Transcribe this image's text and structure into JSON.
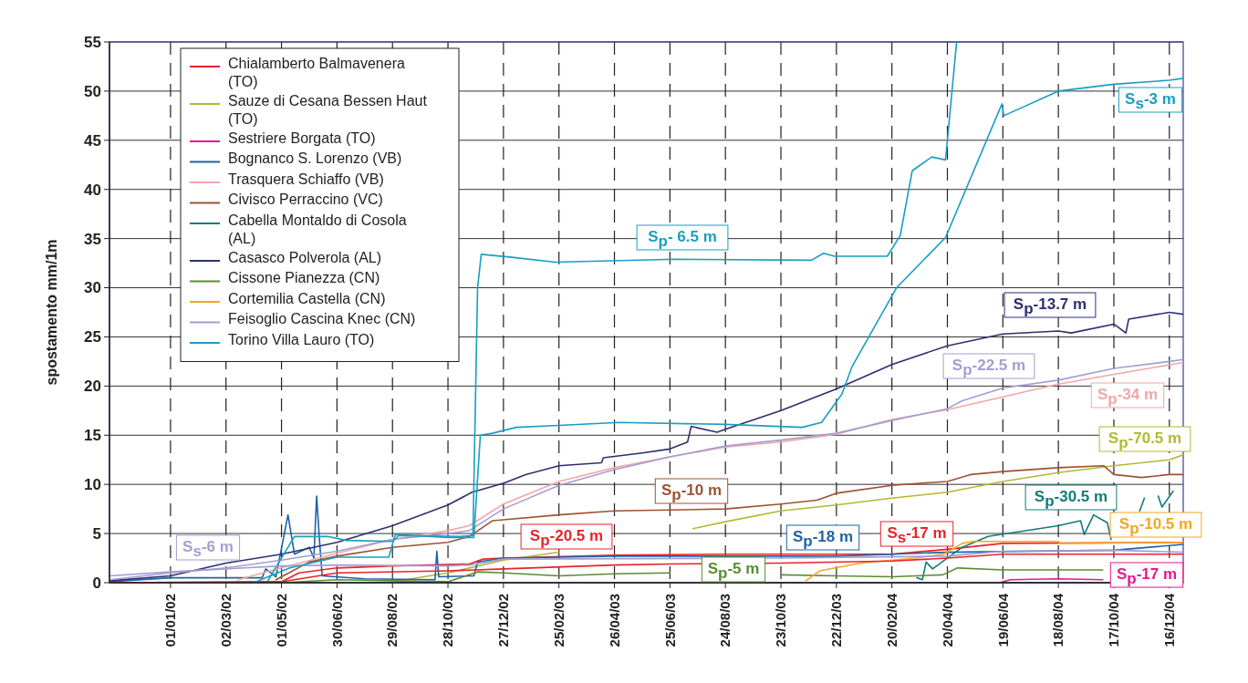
{
  "chart_data": {
    "type": "line",
    "ylabel": "spostamento mm/1m",
    "xlim": [
      "2001-10-27",
      "2004-12-31"
    ],
    "ylim": [
      0,
      55
    ],
    "yticks": [
      0,
      5,
      10,
      15,
      20,
      25,
      30,
      35,
      40,
      45,
      50,
      55
    ],
    "xticks": [
      {
        "value": "2002-01-01",
        "label": "01/01/02"
      },
      {
        "value": "2002-03-02",
        "label": "02/03/02"
      },
      {
        "value": "2002-05-01",
        "label": "01/05/02"
      },
      {
        "value": "2002-06-30",
        "label": "30/06/02"
      },
      {
        "value": "2002-08-29",
        "label": "29/08/02"
      },
      {
        "value": "2002-10-28",
        "label": "28/10/02"
      },
      {
        "value": "2002-12-27",
        "label": "27/12/02"
      },
      {
        "value": "2003-02-25",
        "label": "25/02/03"
      },
      {
        "value": "2003-04-26",
        "label": "26/04/03"
      },
      {
        "value": "2003-06-25",
        "label": "25/06/03"
      },
      {
        "value": "2003-08-24",
        "label": "24/08/03"
      },
      {
        "value": "2003-10-23",
        "label": "23/10/03"
      },
      {
        "value": "2003-12-22",
        "label": "22/12/03"
      },
      {
        "value": "2004-02-20",
        "label": "20/02/04"
      },
      {
        "value": "2004-04-20",
        "label": "20/04/04"
      },
      {
        "value": "2004-06-19",
        "label": "19/06/04"
      },
      {
        "value": "2004-08-18",
        "label": "18/08/04"
      },
      {
        "value": "2004-10-17",
        "label": "17/10/04"
      },
      {
        "value": "2004-12-16",
        "label": "16/12/04"
      }
    ],
    "grid": true,
    "legend": "top left",
    "line_style": "solid",
    "marker": "none",
    "series": [
      {
        "name": "Chialamberto Balmavenera (TO)",
        "color": "#e8232a",
        "x": [
          "2001-10-27",
          "2002-05-01",
          "2002-05-20",
          "2002-06-30",
          "2002-08-29",
          "2002-11-20",
          "2002-12-05",
          "2002-12-27",
          "2003-04-26",
          "2003-08-24",
          "2004-02-20",
          "2004-04-20",
          "2004-06-19",
          "2004-12-31"
        ],
        "values": [
          0,
          0.1,
          1.0,
          1.5,
          1.7,
          1.9,
          2.4,
          2.5,
          2.8,
          2.9,
          2.9,
          3.4,
          4.0,
          4.1
        ]
      },
      {
        "name": "Sauze di Cesana Bessen Haut (TO)",
        "color": "#b3b832",
        "x": [
          "2002-08-29",
          "2002-10-28",
          "2002-12-27",
          "2003-02-25",
          "2003-04-20",
          "2003-07-20",
          "2003-08-24",
          "2003-10-23",
          "2003-12-22",
          "2004-02-20",
          "2004-04-20",
          "2004-06-19",
          "2004-08-18",
          "2004-10-17",
          "2004-12-16",
          "2004-12-31"
        ],
        "values": [
          0.1,
          1.0,
          2.3,
          3.1,
          null,
          5.5,
          6.2,
          7.3,
          7.9,
          8.6,
          9.2,
          10.3,
          11.2,
          11.9,
          12.5,
          13.0
        ]
      },
      {
        "name": "Sestriere Borgata (TO)",
        "color": "#e8168c",
        "x": [
          "2004-06-15",
          "2004-06-27",
          "2004-08-18",
          "2004-10-05"
        ],
        "values": [
          0,
          0.3,
          0.4,
          0.3
        ]
      },
      {
        "name": "Bognanco S. Lorenzo (VB)",
        "color": "#1c63a5",
        "x": [
          "2001-10-27",
          "2002-01-01",
          "2002-03-02",
          "2002-04-10",
          "2002-04-14",
          "2002-04-25",
          "2002-05-08",
          "2002-05-15",
          "2002-05-31",
          "2002-06-05",
          "2002-06-08",
          "2002-06-11",
          "2002-06-14",
          "2002-07-30",
          "2002-10-14",
          "2002-10-16",
          "2002-10-18",
          "2002-11-25",
          "2002-11-29",
          "2002-12-27",
          "2003-02-25",
          "2003-04-26",
          "2003-12-22",
          "2004-04-20",
          "2004-10-17",
          "2004-12-31"
        ],
        "values": [
          0.1,
          0.5,
          0.5,
          0.5,
          1.4,
          0.6,
          6.9,
          2.9,
          3.6,
          2.5,
          8.8,
          4.4,
          0.7,
          0.4,
          0.3,
          3.2,
          0.6,
          0.7,
          2.1,
          2.5,
          2.6,
          2.7,
          2.7,
          3.1,
          3.3,
          3.9
        ]
      },
      {
        "name": "Trasquera Schiaffo (VB)",
        "color": "#f4a6a8",
        "x": [
          "2002-03-15",
          "2002-05-01",
          "2002-06-30",
          "2002-08-29",
          "2002-10-28",
          "2002-11-20",
          "2002-12-27",
          "2003-02-25",
          "2003-04-26",
          "2003-06-25",
          "2003-08-24",
          "2003-10-23",
          "2003-12-22",
          "2004-02-20",
          "2004-04-20",
          "2004-06-19",
          "2004-08-18",
          "2004-10-17",
          "2004-12-31"
        ],
        "values": [
          0.3,
          1.5,
          3.0,
          4.4,
          5.3,
          5.8,
          8.0,
          10.3,
          11.7,
          12.8,
          13.8,
          14.3,
          15.1,
          16.6,
          17.6,
          18.9,
          20.2,
          21.2,
          22.4
        ]
      },
      {
        "name": "Civisco Perraccino (VC)",
        "color": "#9c5233",
        "x": [
          "2002-04-25",
          "2002-05-31",
          "2002-06-30",
          "2002-08-29",
          "2002-10-28",
          "2002-11-20",
          "2002-12-15",
          "2002-12-27",
          "2003-02-25",
          "2003-04-26",
          "2003-06-25",
          "2003-08-24",
          "2003-10-23",
          "2003-12-01",
          "2003-12-22",
          "2004-02-20",
          "2004-04-20",
          "2004-05-15",
          "2004-06-19",
          "2004-08-18",
          "2004-10-06",
          "2004-10-17",
          "2004-11-16",
          "2004-12-16",
          "2004-12-31"
        ],
        "values": [
          0.3,
          2.1,
          2.7,
          3.6,
          4.1,
          4.7,
          6.3,
          6.4,
          6.9,
          7.3,
          7.4,
          7.5,
          8.0,
          8.4,
          9.1,
          9.9,
          10.3,
          11.0,
          11.3,
          11.7,
          11.9,
          11.0,
          10.7,
          11.0,
          11.0
        ]
      },
      {
        "name": "Cabella Montaldo di Cosola (AL)",
        "color": "#127b7b",
        "x": [
          "2004-03-18",
          "2004-03-24",
          "2004-03-28",
          "2004-04-04",
          "2004-05-06",
          "2004-06-03",
          "2004-08-18",
          "2004-09-11",
          "2004-09-15",
          "2004-09-25",
          "2004-10-10",
          "2004-10-14",
          "2004-10-18",
          "2004-11-14",
          "2004-11-19",
          "2004-11-26",
          "2004-12-04",
          "2004-12-08",
          "2004-12-20"
        ],
        "values": [
          0.5,
          0.3,
          2.1,
          1.4,
          3.6,
          4.7,
          5.8,
          6.3,
          4.9,
          6.9,
          6.1,
          4.4,
          null,
          7.3,
          8.6,
          null,
          8.8,
          7.7,
          9.3
        ]
      },
      {
        "name": "Casasco Polverola (AL)",
        "color": "#2d2f70",
        "x": [
          "2001-10-27",
          "2002-01-01",
          "2002-03-02",
          "2002-05-01",
          "2002-06-30",
          "2002-08-29",
          "2002-10-28",
          "2002-11-23",
          "2002-12-27",
          "2003-01-20",
          "2003-02-25",
          "2003-04-12",
          "2003-04-14",
          "2003-05-26",
          "2003-06-25",
          "2003-07-14",
          "2003-07-18",
          "2003-08-15",
          "2003-08-24",
          "2003-10-23",
          "2003-12-22",
          "2004-02-20",
          "2004-04-20",
          "2004-06-19",
          "2004-08-18",
          "2004-09-01",
          "2004-10-17",
          "2004-10-30",
          "2004-11-02",
          "2004-12-16",
          "2004-12-31"
        ],
        "values": [
          0.2,
          0.7,
          2.0,
          2.9,
          4.1,
          5.8,
          7.9,
          9.2,
          10.1,
          11.0,
          11.9,
          12.2,
          12.7,
          13.2,
          13.6,
          14.3,
          15.9,
          15.3,
          15.6,
          17.5,
          19.7,
          22.2,
          24.1,
          25.3,
          25.6,
          25.4,
          26.3,
          25.4,
          26.8,
          27.5,
          27.3
        ]
      },
      {
        "name": "Cissone Pianezza (CN)",
        "color": "#5b8c31",
        "x": [
          "2002-05-01",
          "2002-06-30",
          "2002-08-29",
          "2002-10-28",
          "2002-11-29",
          "2002-12-27",
          "2003-02-25",
          "2003-04-26",
          "2003-06-25",
          "2003-08-24",
          "2003-10-23",
          "2003-12-22",
          "2004-02-20",
          "2004-04-15",
          "2004-05-01",
          "2004-06-19",
          "2004-10-05"
        ],
        "values": [
          0,
          0.3,
          0.2,
          0.1,
          1.1,
          1.0,
          0.7,
          0.9,
          1.0,
          null,
          0.8,
          0.7,
          0.6,
          0.8,
          1.5,
          1.3,
          1.3
        ]
      },
      {
        "name": "Cortemilia Castella (CN)",
        "color": "#f7a51f",
        "x": [
          "2003-11-19",
          "2003-12-04",
          "2004-01-17",
          "2004-03-16",
          "2004-04-16",
          "2004-05-06",
          "2004-05-18",
          "2004-08-18",
          "2004-08-20",
          "2004-12-31"
        ],
        "values": [
          0.2,
          1.2,
          2.0,
          2.5,
          2.9,
          4.0,
          4.2,
          4.2,
          4.0,
          4.1
        ]
      },
      {
        "name": "Feisoglio Cascina Knec (CN)",
        "color": "#a39ed3",
        "x": [
          "2001-10-27",
          "2002-01-01",
          "2002-03-02",
          "2002-05-01",
          "2002-06-30",
          "2002-08-29",
          "2002-10-28",
          "2002-11-20",
          "2002-12-27",
          "2003-02-25",
          "2003-04-26",
          "2003-06-25",
          "2003-08-24",
          "2003-10-23",
          "2003-12-22",
          "2004-02-20",
          "2004-04-20",
          "2004-05-06",
          "2004-06-19",
          "2004-08-18",
          "2004-10-17",
          "2004-12-16",
          "2004-12-31"
        ],
        "values": [
          0.3,
          1.0,
          1.5,
          2.3,
          3.2,
          4.4,
          5.0,
          5.3,
          7.5,
          9.9,
          11.5,
          12.8,
          13.9,
          14.5,
          15.2,
          16.5,
          17.7,
          18.5,
          19.8,
          20.6,
          21.8,
          22.5,
          22.7
        ]
      },
      {
        "name": "Torino Villa Lauro (TO)",
        "color": "#189fc0",
        "x": [
          "2002-04-15",
          "2002-05-15",
          "2002-06-20",
          "2002-07-10",
          "2002-08-29",
          "2002-09-05",
          "2002-11-10",
          "2002-11-24",
          "2002-11-29",
          "2002-12-03",
          "2003-01-05",
          "2003-02-21",
          "2003-07-01",
          "2003-11-25",
          "2003-12-08",
          "2003-12-20",
          "2004-02-15",
          "2004-02-29",
          "2004-03-13",
          "2004-04-03",
          "2004-04-18",
          "2004-04-30"
        ],
        "values": [
          0,
          4.7,
          4.7,
          4.3,
          4.2,
          4.8,
          4.7,
          4.8,
          30,
          33.4,
          33.1,
          32.6,
          32.9,
          32.8,
          33.5,
          33.2,
          33.2,
          35.3,
          41.9,
          43.3,
          43.0,
          55
        ]
      },
      {
        "color": "#e8232a",
        "x": [
          "2001-10-27",
          "2002-05-01",
          "2002-06-10",
          "2002-06-30",
          "2002-10-28",
          "2002-12-27",
          "2003-04-26",
          "2003-06-25",
          "2003-10-23",
          "2004-02-20",
          "2004-04-20",
          "2004-06-19",
          "2004-12-31"
        ],
        "values": [
          0,
          0.1,
          0.7,
          1.0,
          1.2,
          1.4,
          1.8,
          1.9,
          2.0,
          2.2,
          2.5,
          2.9,
          2.9
        ]
      },
      {
        "color": "#a39ed3",
        "x": [
          "2001-10-27",
          "2002-01-01",
          "2002-03-02",
          "2002-05-01",
          "2002-06-30",
          "2002-10-28",
          "2002-11-20",
          "2002-12-27",
          "2003-10-23",
          "2004-04-20",
          "2004-06-19",
          "2004-10-17",
          "2004-12-31"
        ],
        "values": [
          0.7,
          1.1,
          1.4,
          1.7,
          1.8,
          1.7,
          1.8,
          2.4,
          2.5,
          2.7,
          3.2,
          3.3,
          3.1
        ]
      },
      {
        "color": "#189fc0",
        "x": [
          "2002-04-01",
          "2002-05-10",
          "2002-06-30",
          "2002-08-25",
          "2002-09-01",
          "2002-10-28",
          "2002-11-25",
          "2002-12-02",
          "2002-12-15",
          "2003-01-10",
          "2003-02-25",
          "2003-05-01",
          "2003-08-24",
          "2003-11-15",
          "2003-12-06",
          "2003-12-28",
          "2004-01-08",
          "2004-02-25",
          "2004-04-18",
          "2004-06-18",
          "2004-06-20",
          "2004-08-18",
          "2004-10-17",
          "2004-12-16",
          "2004-12-31"
        ],
        "values": [
          0,
          1.5,
          2.6,
          2.6,
          4.9,
          4.6,
          4.6,
          15.0,
          15.2,
          15.8,
          16.0,
          16.3,
          16.1,
          15.8,
          16.3,
          19.2,
          22.0,
          30.0,
          35.1,
          48.7,
          47.5,
          50.0,
          50.7,
          51.1,
          51.3
        ]
      }
    ],
    "annotations": [
      "S$_{s}$-6 m",
      "S$_{p}$-20.5 m",
      "S$_{p}$-5 m",
      "S$_{p}$-18 m",
      "S$_{s}$-17 m",
      "S$_{p}$-10 m",
      "S$_{p}$-30.5 m",
      "S$_{p}$-10.5 m",
      "S$_{p}$-17 m",
      "S$_{p}$-70.5 m",
      "S$_{p}$-34 m",
      "S$_{p}$-22.5 m",
      "S$_{p}$-13.7 m",
      "S$_{p}$- 6.5 m",
      "S$_{s}$-3 m"
    ]
  }
}
